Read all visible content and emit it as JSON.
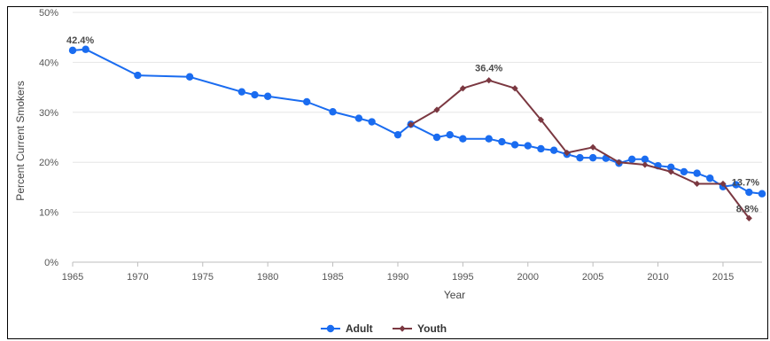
{
  "chart_data": {
    "type": "line",
    "title": "",
    "xlabel": "Year",
    "ylabel": "Percent Current Smokers",
    "xlim": [
      1965,
      2018
    ],
    "ylim": [
      0,
      50
    ],
    "xticks": [
      1965,
      1970,
      1975,
      1980,
      1985,
      1990,
      1995,
      2000,
      2005,
      2010,
      2015
    ],
    "yticks": [
      0,
      10,
      20,
      30,
      40,
      50
    ],
    "ytick_labels": [
      "0%",
      "10%",
      "20%",
      "30%",
      "40%",
      "50%"
    ],
    "grid": "horizontal",
    "legend": "bottom-center",
    "series": [
      {
        "name": "Adult",
        "color": "#1a6cf0",
        "marker": "circle",
        "points": [
          [
            1965,
            42.4
          ],
          [
            1966,
            42.6
          ],
          [
            1970,
            37.4
          ],
          [
            1974,
            37.1
          ],
          [
            1978,
            34.1
          ],
          [
            1979,
            33.5
          ],
          [
            1980,
            33.2
          ],
          [
            1983,
            32.1
          ],
          [
            1985,
            30.1
          ],
          [
            1987,
            28.8
          ],
          [
            1988,
            28.1
          ],
          [
            1990,
            25.5
          ],
          [
            1991,
            27.6
          ],
          [
            1993,
            25.0
          ],
          [
            1994,
            25.5
          ],
          [
            1995,
            24.7
          ],
          [
            1997,
            24.7
          ],
          [
            1998,
            24.1
          ],
          [
            1999,
            23.5
          ],
          [
            2000,
            23.3
          ],
          [
            2001,
            22.7
          ],
          [
            2002,
            22.4
          ],
          [
            2003,
            21.6
          ],
          [
            2004,
            20.9
          ],
          [
            2005,
            20.9
          ],
          [
            2006,
            20.8
          ],
          [
            2007,
            19.8
          ],
          [
            2008,
            20.6
          ],
          [
            2009,
            20.6
          ],
          [
            2010,
            19.3
          ],
          [
            2011,
            19.0
          ],
          [
            2012,
            18.1
          ],
          [
            2013,
            17.8
          ],
          [
            2014,
            16.8
          ],
          [
            2015,
            15.1
          ],
          [
            2016,
            15.5
          ],
          [
            2017,
            14.0
          ],
          [
            2018,
            13.7
          ]
        ]
      },
      {
        "name": "Youth",
        "color": "#7b3841",
        "marker": "diamond",
        "points": [
          [
            1991,
            27.5
          ],
          [
            1993,
            30.5
          ],
          [
            1995,
            34.8
          ],
          [
            1997,
            36.4
          ],
          [
            1999,
            34.8
          ],
          [
            2001,
            28.5
          ],
          [
            2003,
            21.9
          ],
          [
            2005,
            23.0
          ],
          [
            2007,
            20.0
          ],
          [
            2009,
            19.5
          ],
          [
            2011,
            18.1
          ],
          [
            2013,
            15.7
          ],
          [
            2015,
            15.7
          ],
          [
            2017,
            8.8
          ]
        ]
      }
    ],
    "annotations": [
      {
        "series": "Adult",
        "x": 1965,
        "y": 42.4,
        "text": "42.4%"
      },
      {
        "series": "Youth",
        "x": 1997,
        "y": 36.4,
        "text": "36.4%"
      },
      {
        "series": "Adult",
        "x": 2018,
        "y": 13.7,
        "text": "13.7%"
      },
      {
        "series": "Youth",
        "x": 2017,
        "y": 8.8,
        "text": "8.8%"
      }
    ]
  }
}
